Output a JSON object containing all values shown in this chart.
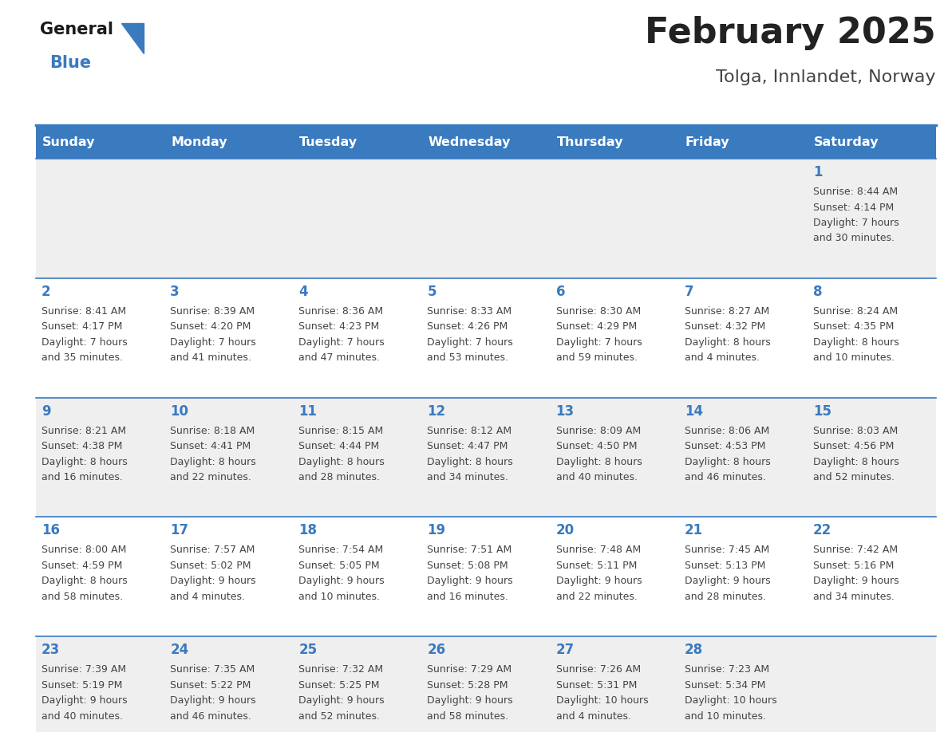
{
  "title": "February 2025",
  "subtitle": "Tolga, Innlandet, Norway",
  "header_bg": "#3a7abf",
  "header_text_color": "#ffffff",
  "cell_bg_odd": "#efefef",
  "cell_bg_even": "#ffffff",
  "day_headers": [
    "Sunday",
    "Monday",
    "Tuesday",
    "Wednesday",
    "Thursday",
    "Friday",
    "Saturday"
  ],
  "title_color": "#222222",
  "subtitle_color": "#444444",
  "day_number_color": "#3a7abf",
  "info_color": "#444444",
  "grid_color": "#3a7abf",
  "logo_general_color": "#1a1a1a",
  "logo_blue_color": "#3a7abf",
  "logo_triangle_color": "#3a7abf",
  "calendar": [
    [
      null,
      null,
      null,
      null,
      null,
      null,
      {
        "day": 1,
        "sunrise": "8:44 AM",
        "sunset": "4:14 PM",
        "daylight_h": "7 hours",
        "daylight_m": "and 30 minutes."
      }
    ],
    [
      {
        "day": 2,
        "sunrise": "8:41 AM",
        "sunset": "4:17 PM",
        "daylight_h": "7 hours",
        "daylight_m": "and 35 minutes."
      },
      {
        "day": 3,
        "sunrise": "8:39 AM",
        "sunset": "4:20 PM",
        "daylight_h": "7 hours",
        "daylight_m": "and 41 minutes."
      },
      {
        "day": 4,
        "sunrise": "8:36 AM",
        "sunset": "4:23 PM",
        "daylight_h": "7 hours",
        "daylight_m": "and 47 minutes."
      },
      {
        "day": 5,
        "sunrise": "8:33 AM",
        "sunset": "4:26 PM",
        "daylight_h": "7 hours",
        "daylight_m": "and 53 minutes."
      },
      {
        "day": 6,
        "sunrise": "8:30 AM",
        "sunset": "4:29 PM",
        "daylight_h": "7 hours",
        "daylight_m": "and 59 minutes."
      },
      {
        "day": 7,
        "sunrise": "8:27 AM",
        "sunset": "4:32 PM",
        "daylight_h": "8 hours",
        "daylight_m": "and 4 minutes."
      },
      {
        "day": 8,
        "sunrise": "8:24 AM",
        "sunset": "4:35 PM",
        "daylight_h": "8 hours",
        "daylight_m": "and 10 minutes."
      }
    ],
    [
      {
        "day": 9,
        "sunrise": "8:21 AM",
        "sunset": "4:38 PM",
        "daylight_h": "8 hours",
        "daylight_m": "and 16 minutes."
      },
      {
        "day": 10,
        "sunrise": "8:18 AM",
        "sunset": "4:41 PM",
        "daylight_h": "8 hours",
        "daylight_m": "and 22 minutes."
      },
      {
        "day": 11,
        "sunrise": "8:15 AM",
        "sunset": "4:44 PM",
        "daylight_h": "8 hours",
        "daylight_m": "and 28 minutes."
      },
      {
        "day": 12,
        "sunrise": "8:12 AM",
        "sunset": "4:47 PM",
        "daylight_h": "8 hours",
        "daylight_m": "and 34 minutes."
      },
      {
        "day": 13,
        "sunrise": "8:09 AM",
        "sunset": "4:50 PM",
        "daylight_h": "8 hours",
        "daylight_m": "and 40 minutes."
      },
      {
        "day": 14,
        "sunrise": "8:06 AM",
        "sunset": "4:53 PM",
        "daylight_h": "8 hours",
        "daylight_m": "and 46 minutes."
      },
      {
        "day": 15,
        "sunrise": "8:03 AM",
        "sunset": "4:56 PM",
        "daylight_h": "8 hours",
        "daylight_m": "and 52 minutes."
      }
    ],
    [
      {
        "day": 16,
        "sunrise": "8:00 AM",
        "sunset": "4:59 PM",
        "daylight_h": "8 hours",
        "daylight_m": "and 58 minutes."
      },
      {
        "day": 17,
        "sunrise": "7:57 AM",
        "sunset": "5:02 PM",
        "daylight_h": "9 hours",
        "daylight_m": "and 4 minutes."
      },
      {
        "day": 18,
        "sunrise": "7:54 AM",
        "sunset": "5:05 PM",
        "daylight_h": "9 hours",
        "daylight_m": "and 10 minutes."
      },
      {
        "day": 19,
        "sunrise": "7:51 AM",
        "sunset": "5:08 PM",
        "daylight_h": "9 hours",
        "daylight_m": "and 16 minutes."
      },
      {
        "day": 20,
        "sunrise": "7:48 AM",
        "sunset": "5:11 PM",
        "daylight_h": "9 hours",
        "daylight_m": "and 22 minutes."
      },
      {
        "day": 21,
        "sunrise": "7:45 AM",
        "sunset": "5:13 PM",
        "daylight_h": "9 hours",
        "daylight_m": "and 28 minutes."
      },
      {
        "day": 22,
        "sunrise": "7:42 AM",
        "sunset": "5:16 PM",
        "daylight_h": "9 hours",
        "daylight_m": "and 34 minutes."
      }
    ],
    [
      {
        "day": 23,
        "sunrise": "7:39 AM",
        "sunset": "5:19 PM",
        "daylight_h": "9 hours",
        "daylight_m": "and 40 minutes."
      },
      {
        "day": 24,
        "sunrise": "7:35 AM",
        "sunset": "5:22 PM",
        "daylight_h": "9 hours",
        "daylight_m": "and 46 minutes."
      },
      {
        "day": 25,
        "sunrise": "7:32 AM",
        "sunset": "5:25 PM",
        "daylight_h": "9 hours",
        "daylight_m": "and 52 minutes."
      },
      {
        "day": 26,
        "sunrise": "7:29 AM",
        "sunset": "5:28 PM",
        "daylight_h": "9 hours",
        "daylight_m": "and 58 minutes."
      },
      {
        "day": 27,
        "sunrise": "7:26 AM",
        "sunset": "5:31 PM",
        "daylight_h": "10 hours",
        "daylight_m": "and 4 minutes."
      },
      {
        "day": 28,
        "sunrise": "7:23 AM",
        "sunset": "5:34 PM",
        "daylight_h": "10 hours",
        "daylight_m": "and 10 minutes."
      },
      null
    ]
  ]
}
